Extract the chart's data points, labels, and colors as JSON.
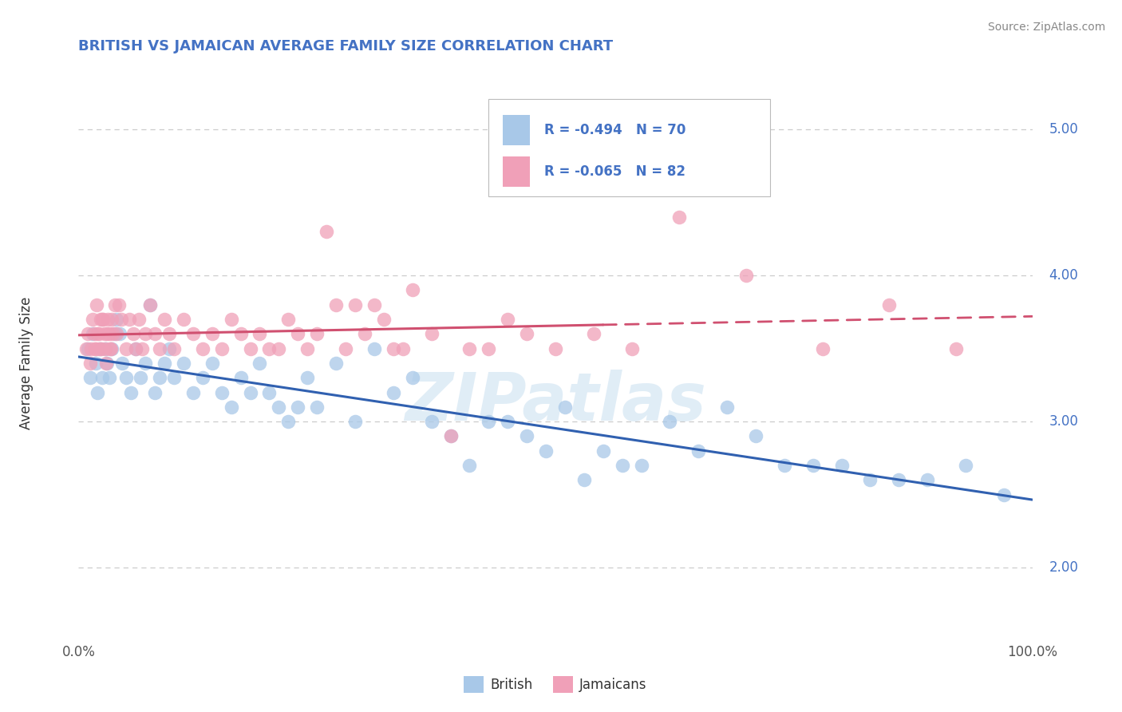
{
  "title": "BRITISH VS JAMAICAN AVERAGE FAMILY SIZE CORRELATION CHART",
  "source": "Source: ZipAtlas.com",
  "ylabel": "Average Family Size",
  "xlim": [
    0.0,
    100.0
  ],
  "ylim": [
    1.5,
    5.3
  ],
  "yticks": [
    2.0,
    3.0,
    4.0,
    5.0
  ],
  "xticklabels": [
    "0.0%",
    "100.0%"
  ],
  "british_color": "#A8C8E8",
  "jamaican_color": "#F0A0B8",
  "british_line_color": "#3060B0",
  "jamaican_line_color": "#D05070",
  "title_color": "#4472C4",
  "label_color": "#4472C4",
  "R_british": -0.494,
  "N_british": 70,
  "R_jamaican": -0.065,
  "N_jamaican": 82,
  "legend_labels": [
    "British",
    "Jamaicans"
  ],
  "background_color": "#FFFFFF",
  "grid_color": "#CCCCCC",
  "watermark": "ZIPatlas",
  "british_points_x": [
    1.0,
    1.2,
    1.5,
    1.8,
    2.0,
    2.2,
    2.5,
    2.8,
    3.0,
    3.2,
    3.5,
    3.8,
    4.0,
    4.3,
    4.6,
    5.0,
    5.5,
    6.0,
    6.5,
    7.0,
    7.5,
    8.0,
    8.5,
    9.0,
    9.5,
    10.0,
    11.0,
    12.0,
    13.0,
    14.0,
    15.0,
    16.0,
    17.0,
    18.0,
    19.0,
    20.0,
    21.0,
    22.0,
    23.0,
    24.0,
    25.0,
    27.0,
    29.0,
    31.0,
    33.0,
    35.0,
    37.0,
    39.0,
    41.0,
    43.0,
    45.0,
    47.0,
    49.0,
    51.0,
    53.0,
    55.0,
    57.0,
    59.0,
    62.0,
    65.0,
    68.0,
    71.0,
    74.0,
    77.0,
    80.0,
    83.0,
    86.0,
    89.0,
    93.0,
    97.0
  ],
  "british_points_y": [
    3.5,
    3.3,
    3.6,
    3.4,
    3.2,
    3.5,
    3.3,
    3.5,
    3.4,
    3.3,
    3.5,
    3.6,
    3.7,
    3.6,
    3.4,
    3.3,
    3.2,
    3.5,
    3.3,
    3.4,
    3.8,
    3.2,
    3.3,
    3.4,
    3.5,
    3.3,
    3.4,
    3.2,
    3.3,
    3.4,
    3.2,
    3.1,
    3.3,
    3.2,
    3.4,
    3.2,
    3.1,
    3.0,
    3.1,
    3.3,
    3.1,
    3.4,
    3.0,
    3.5,
    3.2,
    3.3,
    3.0,
    2.9,
    2.7,
    3.0,
    3.0,
    2.9,
    2.8,
    3.1,
    2.6,
    2.8,
    2.7,
    2.7,
    3.0,
    2.8,
    3.1,
    2.9,
    2.7,
    2.7,
    2.7,
    2.6,
    2.6,
    2.6,
    2.7,
    2.5
  ],
  "jamaican_points_x": [
    0.8,
    1.0,
    1.2,
    1.3,
    1.5,
    1.6,
    1.7,
    1.8,
    1.9,
    2.0,
    2.1,
    2.2,
    2.3,
    2.4,
    2.5,
    2.6,
    2.7,
    2.8,
    2.9,
    3.0,
    3.1,
    3.2,
    3.3,
    3.4,
    3.5,
    3.6,
    3.8,
    4.0,
    4.2,
    4.5,
    5.0,
    5.3,
    5.7,
    6.0,
    6.3,
    6.7,
    7.0,
    7.5,
    8.0,
    8.5,
    9.0,
    9.5,
    10.0,
    11.0,
    12.0,
    13.0,
    14.0,
    15.0,
    16.0,
    17.0,
    18.0,
    19.0,
    20.0,
    21.0,
    22.0,
    23.0,
    24.0,
    25.0,
    26.0,
    27.0,
    28.0,
    29.0,
    30.0,
    31.0,
    32.0,
    33.0,
    34.0,
    35.0,
    37.0,
    39.0,
    41.0,
    43.0,
    45.0,
    47.0,
    50.0,
    54.0,
    58.0,
    63.0,
    70.0,
    78.0,
    85.0,
    92.0
  ],
  "jamaican_points_y": [
    3.5,
    3.6,
    3.4,
    3.5,
    3.7,
    3.6,
    3.5,
    3.5,
    3.8,
    3.6,
    3.6,
    3.5,
    3.7,
    3.5,
    3.7,
    3.7,
    3.6,
    3.5,
    3.4,
    3.6,
    3.7,
    3.6,
    3.5,
    3.5,
    3.7,
    3.6,
    3.8,
    3.6,
    3.8,
    3.7,
    3.5,
    3.7,
    3.6,
    3.5,
    3.7,
    3.5,
    3.6,
    3.8,
    3.6,
    3.5,
    3.7,
    3.6,
    3.5,
    3.7,
    3.6,
    3.5,
    3.6,
    3.5,
    3.7,
    3.6,
    3.5,
    3.6,
    3.5,
    3.5,
    3.7,
    3.6,
    3.5,
    3.6,
    4.3,
    3.8,
    3.5,
    3.8,
    3.6,
    3.8,
    3.7,
    3.5,
    3.5,
    3.9,
    3.6,
    2.9,
    3.5,
    3.5,
    3.7,
    3.6,
    3.5,
    3.6,
    3.5,
    4.4,
    4.0,
    3.5,
    3.8,
    3.5
  ]
}
